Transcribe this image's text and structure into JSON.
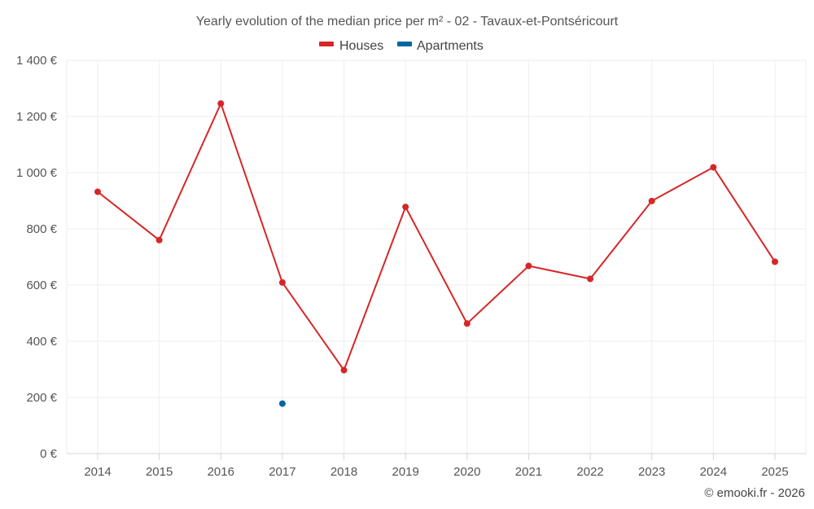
{
  "chart_data": {
    "type": "line",
    "title": "Yearly evolution of the median price per m² - 02 - Tavaux-et-Pontséricourt",
    "categories": [
      "2014",
      "2015",
      "2016",
      "2017",
      "2018",
      "2019",
      "2020",
      "2021",
      "2022",
      "2023",
      "2024",
      "2025"
    ],
    "series": [
      {
        "name": "Houses",
        "color": "#d62728",
        "values": [
          932,
          760,
          1246,
          609,
          297,
          878,
          463,
          668,
          622,
          899,
          1019,
          683
        ]
      },
      {
        "name": "Apartments",
        "color": "#0066a1",
        "values": [
          null,
          null,
          null,
          178,
          null,
          null,
          null,
          null,
          null,
          null,
          null,
          null
        ]
      }
    ],
    "y_ticks": [
      "0 €",
      "200 €",
      "400 €",
      "600 €",
      "800 €",
      "1 000 €",
      "1 200 €",
      "1 400 €"
    ],
    "ylim": [
      0,
      1400
    ],
    "grid": true,
    "legend_position": "top-center",
    "credit": "© emooki.fr - 2026"
  }
}
